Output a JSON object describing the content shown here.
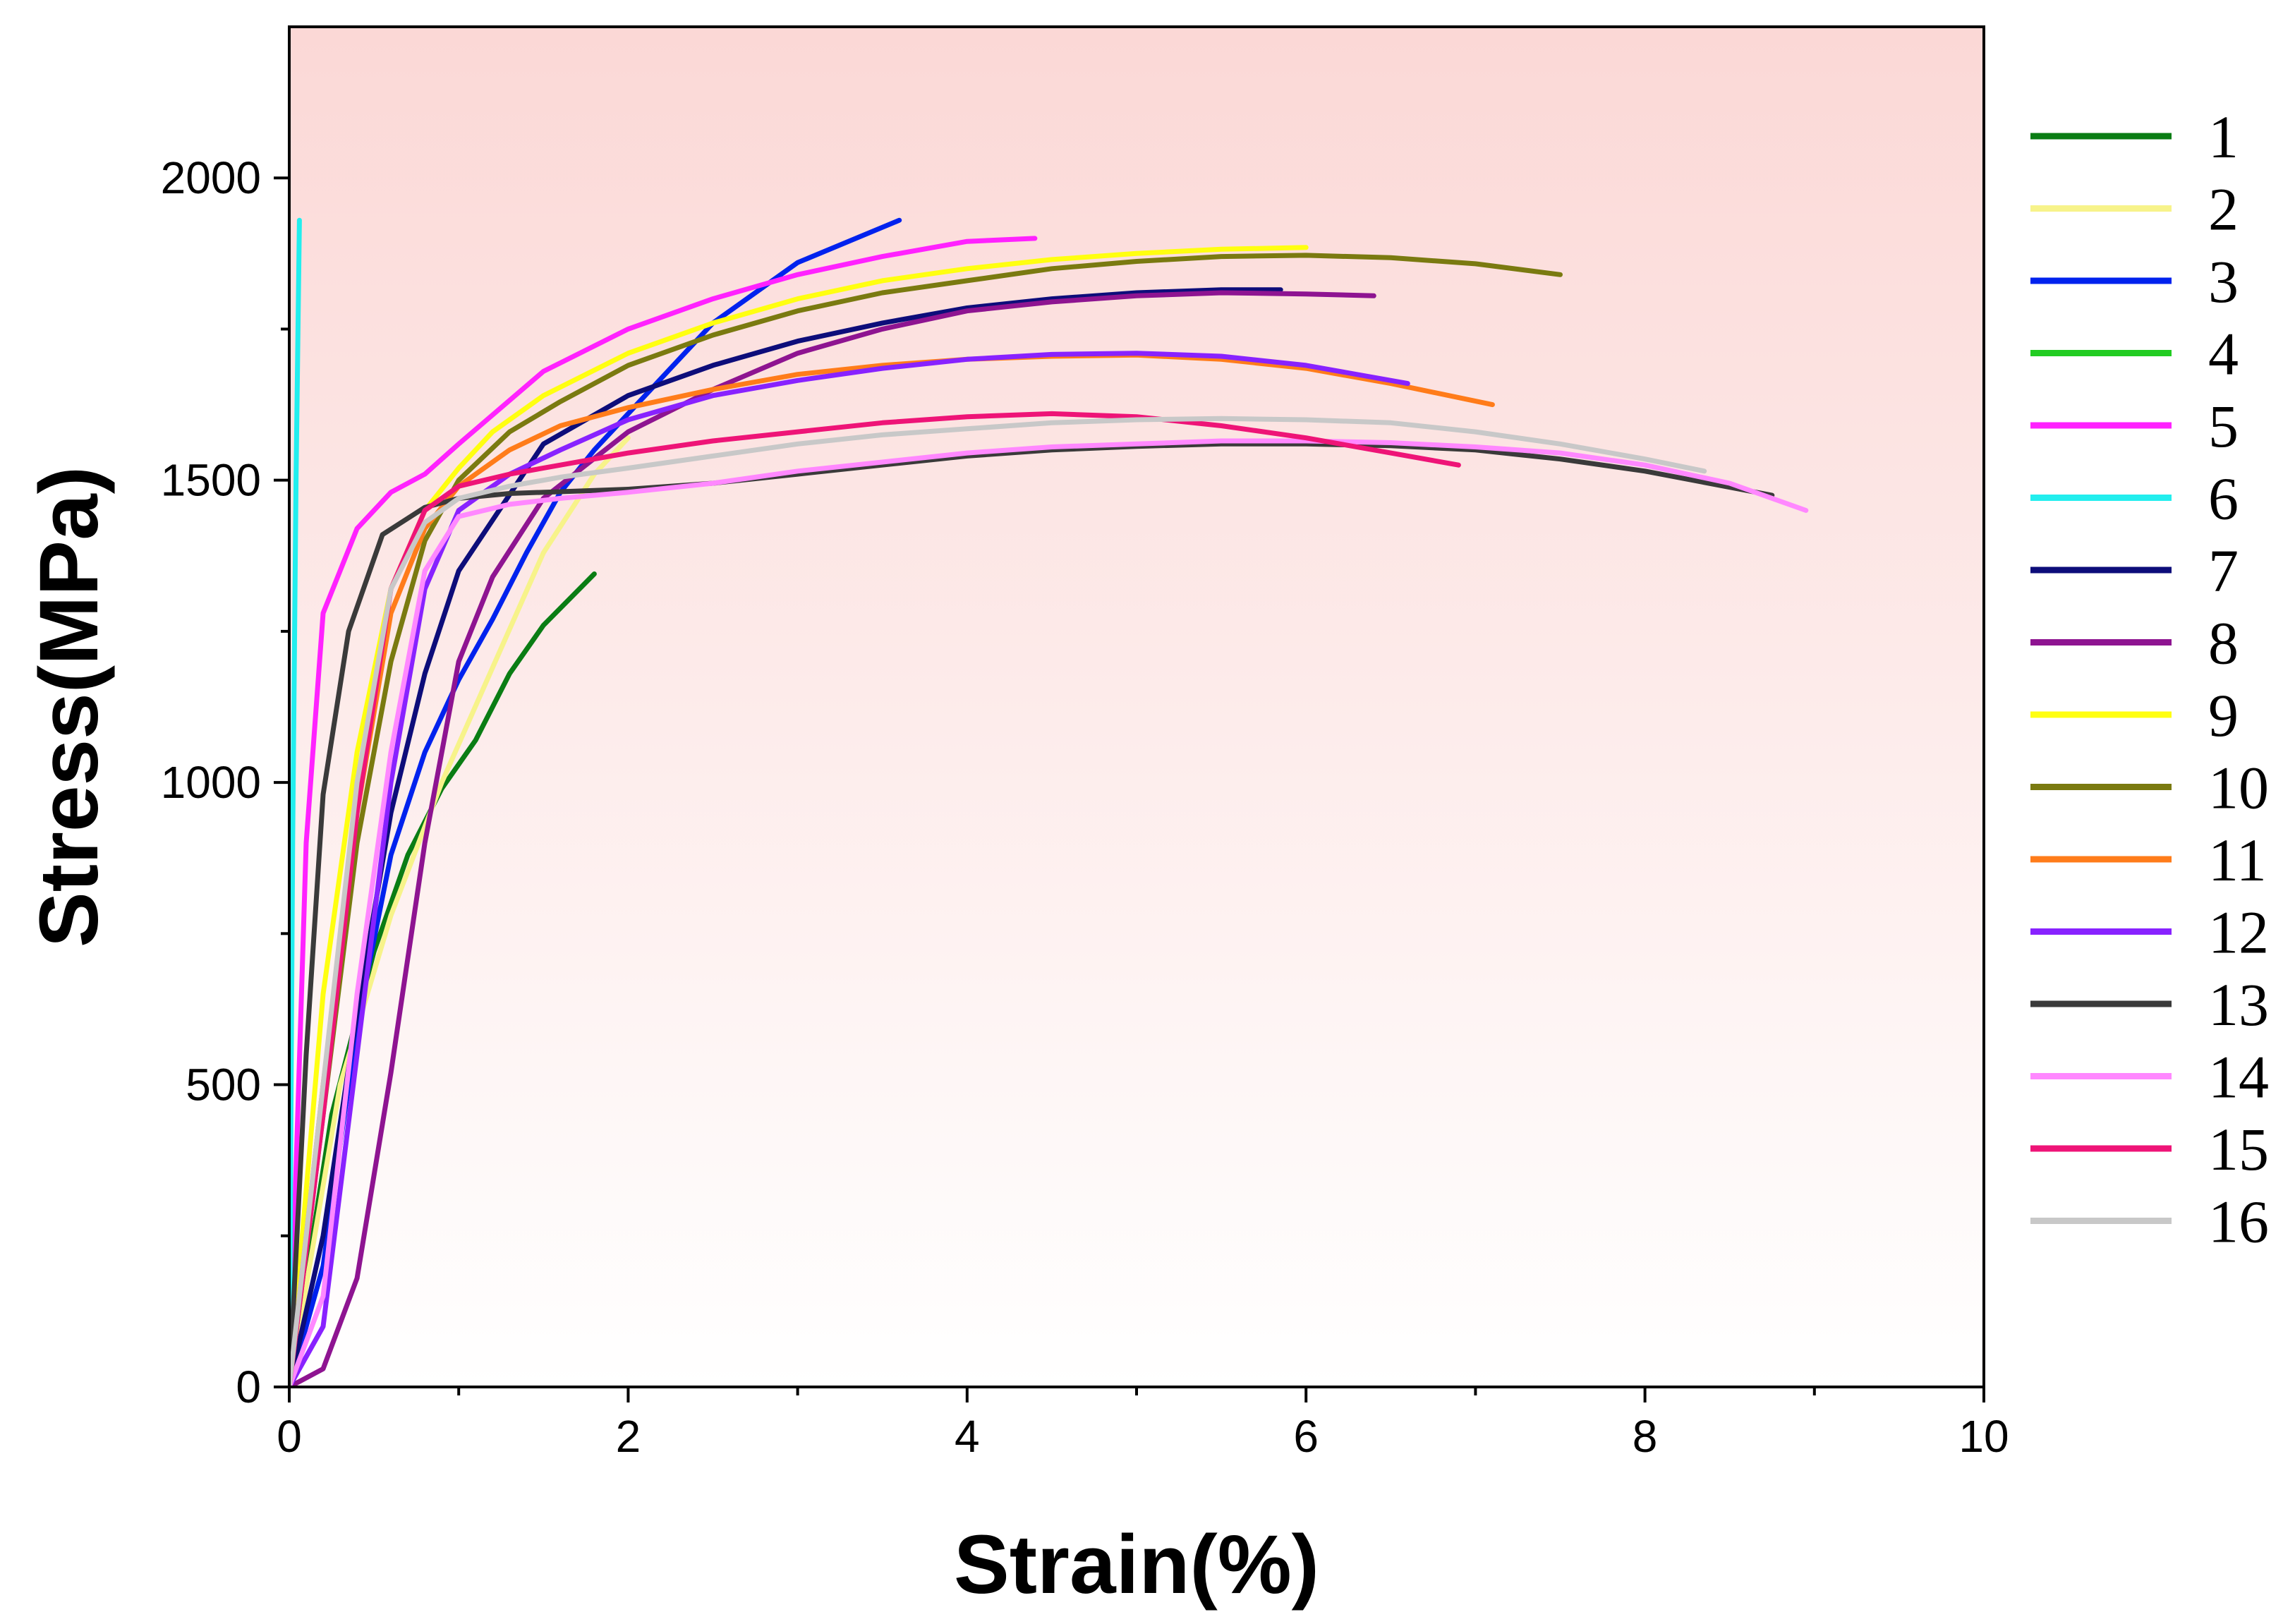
{
  "chart_data": {
    "type": "line",
    "title": "",
    "xlabel": "Strain(%)",
    "ylabel": "Stress(MPa)",
    "xlim": [
      0,
      10
    ],
    "ylim": [
      0,
      2250
    ],
    "xticks": [
      0,
      2,
      4,
      6,
      8,
      10
    ],
    "xtick_labels": [
      "0",
      "2",
      "4",
      "6",
      "8",
      "10"
    ],
    "yticks": [
      0,
      500,
      1000,
      1500,
      2000
    ],
    "ytick_labels": [
      "0",
      "500",
      "1000",
      "1500",
      "2000"
    ],
    "grid": false,
    "background": {
      "top": "#fbd8d6",
      "bottom": "#ffffff"
    },
    "legend_position": "right",
    "series": [
      {
        "name": "1",
        "color": "#0a7d14",
        "x": [
          0,
          0.25,
          0.5,
          0.7,
          0.9,
          1.1,
          1.3,
          1.5,
          1.8
        ],
        "y": [
          0,
          450,
          720,
          880,
          990,
          1070,
          1180,
          1260,
          1345
        ]
      },
      {
        "name": "2",
        "color": "#f7f38a",
        "x": [
          0,
          0.3,
          0.6,
          0.9,
          1.2,
          1.5,
          1.8,
          2.0
        ],
        "y": [
          0,
          500,
          780,
          1000,
          1190,
          1380,
          1510,
          1570
        ]
      },
      {
        "name": "3",
        "color": "#0022ee",
        "x": [
          0,
          0.2,
          0.4,
          0.6,
          0.8,
          1.0,
          1.2,
          1.4,
          1.6,
          1.8,
          2.0,
          2.5,
          3.0,
          3.6
        ],
        "y": [
          0,
          200,
          600,
          880,
          1050,
          1170,
          1270,
          1380,
          1480,
          1550,
          1610,
          1760,
          1860,
          1930
        ]
      },
      {
        "name": "4",
        "color": "#22cc22",
        "x": [],
        "y": []
      },
      {
        "name": "5",
        "color": "#ff22ff",
        "x": [
          0,
          0.1,
          0.2,
          0.4,
          0.6,
          0.8,
          1.0,
          1.5,
          2.0,
          2.5,
          3.0,
          3.5,
          4.0,
          4.4
        ],
        "y": [
          0,
          900,
          1280,
          1420,
          1480,
          1510,
          1560,
          1680,
          1750,
          1800,
          1840,
          1870,
          1895,
          1900
        ]
      },
      {
        "name": "6",
        "color": "#22eeee",
        "x": [
          0,
          0.02,
          0.04,
          0.06
        ],
        "y": [
          0,
          900,
          1500,
          1930
        ]
      },
      {
        "name": "7",
        "color": "#0d0d7a",
        "x": [
          0,
          0.2,
          0.4,
          0.6,
          0.8,
          1.0,
          1.5,
          2.0,
          2.5,
          3.0,
          3.5,
          4.0,
          4.5,
          5.0,
          5.5,
          5.85
        ],
        "y": [
          0,
          250,
          620,
          950,
          1180,
          1350,
          1560,
          1640,
          1690,
          1730,
          1760,
          1785,
          1800,
          1810,
          1815,
          1815
        ]
      },
      {
        "name": "8",
        "color": "#8e1491",
        "x": [
          0,
          0.2,
          0.4,
          0.6,
          0.8,
          1.0,
          1.2,
          1.5,
          2.0,
          2.5,
          3.0,
          3.5,
          4.0,
          4.5,
          5.0,
          5.5,
          6.0,
          6.4
        ],
        "y": [
          0,
          30,
          180,
          520,
          900,
          1200,
          1340,
          1470,
          1580,
          1650,
          1710,
          1750,
          1780,
          1795,
          1805,
          1810,
          1808,
          1805
        ]
      },
      {
        "name": "9",
        "color": "#ffff10",
        "x": [
          0,
          0.2,
          0.4,
          0.6,
          0.8,
          1.0,
          1.2,
          1.5,
          2.0,
          2.5,
          3.0,
          3.5,
          4.0,
          4.5,
          5.0,
          5.5,
          6.0
        ],
        "y": [
          0,
          650,
          1050,
          1320,
          1450,
          1520,
          1580,
          1640,
          1710,
          1760,
          1800,
          1830,
          1850,
          1865,
          1875,
          1882,
          1885
        ]
      },
      {
        "name": "10",
        "color": "#7a7a10",
        "x": [
          0,
          0.2,
          0.4,
          0.6,
          0.8,
          1.0,
          1.3,
          1.6,
          2.0,
          2.5,
          3.0,
          3.5,
          4.0,
          4.5,
          5.0,
          5.5,
          6.0,
          6.5,
          7.0,
          7.5
        ],
        "y": [
          0,
          450,
          900,
          1200,
          1400,
          1500,
          1580,
          1630,
          1690,
          1740,
          1780,
          1810,
          1830,
          1850,
          1862,
          1870,
          1872,
          1868,
          1858,
          1840
        ]
      },
      {
        "name": "11",
        "color": "#ff7c1a",
        "x": [
          0,
          0.2,
          0.4,
          0.6,
          0.8,
          1.0,
          1.3,
          1.6,
          2.0,
          2.5,
          3.0,
          3.5,
          4.0,
          4.5,
          5.0,
          5.5,
          6.0,
          6.5,
          7.1
        ],
        "y": [
          0,
          500,
          950,
          1280,
          1420,
          1490,
          1550,
          1590,
          1620,
          1650,
          1675,
          1690,
          1700,
          1705,
          1707,
          1700,
          1685,
          1660,
          1625
        ]
      },
      {
        "name": "12",
        "color": "#8822ff",
        "x": [
          0,
          0.2,
          0.4,
          0.6,
          0.8,
          1.0,
          1.3,
          1.6,
          2.0,
          2.5,
          3.0,
          3.5,
          4.0,
          4.5,
          5.0,
          5.5,
          6.0,
          6.6
        ],
        "y": [
          0,
          100,
          550,
          1000,
          1320,
          1450,
          1510,
          1550,
          1600,
          1640,
          1665,
          1685,
          1700,
          1708,
          1710,
          1705,
          1690,
          1660
        ]
      },
      {
        "name": "13",
        "color": "#3a3a3a",
        "x": [
          0,
          0.1,
          0.2,
          0.35,
          0.55,
          0.8,
          1.0,
          1.3,
          1.7,
          2.0,
          2.5,
          3.0,
          3.5,
          4.0,
          4.5,
          5.0,
          5.5,
          6.0,
          6.5,
          7.0,
          7.5,
          8.0,
          8.75
        ],
        "y": [
          0,
          550,
          980,
          1250,
          1410,
          1455,
          1470,
          1478,
          1482,
          1485,
          1495,
          1510,
          1525,
          1540,
          1550,
          1556,
          1560,
          1560,
          1557,
          1550,
          1535,
          1515,
          1475
        ]
      },
      {
        "name": "14",
        "color": "#ff88ff",
        "x": [
          0,
          0.2,
          0.4,
          0.6,
          0.8,
          1.0,
          1.3,
          1.6,
          2.0,
          2.5,
          3.0,
          3.5,
          4.0,
          4.5,
          5.0,
          5.5,
          6.0,
          6.5,
          7.0,
          7.5,
          8.0,
          8.5,
          8.95
        ],
        "y": [
          0,
          150,
          650,
          1050,
          1350,
          1440,
          1460,
          1470,
          1480,
          1495,
          1515,
          1530,
          1545,
          1555,
          1560,
          1565,
          1565,
          1562,
          1555,
          1545,
          1525,
          1495,
          1450
        ]
      },
      {
        "name": "15",
        "color": "#ee1477",
        "x": [
          0,
          0.2,
          0.4,
          0.6,
          0.8,
          1.0,
          1.3,
          1.6,
          2.0,
          2.5,
          3.0,
          3.5,
          4.0,
          4.5,
          5.0,
          5.5,
          6.0,
          6.5,
          6.9
        ],
        "y": [
          0,
          450,
          950,
          1320,
          1450,
          1490,
          1510,
          1525,
          1545,
          1565,
          1580,
          1595,
          1605,
          1610,
          1605,
          1590,
          1570,
          1545,
          1525
        ]
      },
      {
        "name": "16",
        "color": "#c8c8c8",
        "x": [
          0,
          0.2,
          0.4,
          0.6,
          0.8,
          1.0,
          1.3,
          1.6,
          2.0,
          2.5,
          3.0,
          3.5,
          4.0,
          4.5,
          5.0,
          5.5,
          6.0,
          6.5,
          7.0,
          7.5,
          8.0,
          8.35
        ],
        "y": [
          0,
          500,
          1000,
          1320,
          1430,
          1470,
          1490,
          1505,
          1520,
          1540,
          1560,
          1575,
          1585,
          1595,
          1600,
          1602,
          1600,
          1595,
          1580,
          1560,
          1535,
          1515
        ]
      }
    ]
  }
}
